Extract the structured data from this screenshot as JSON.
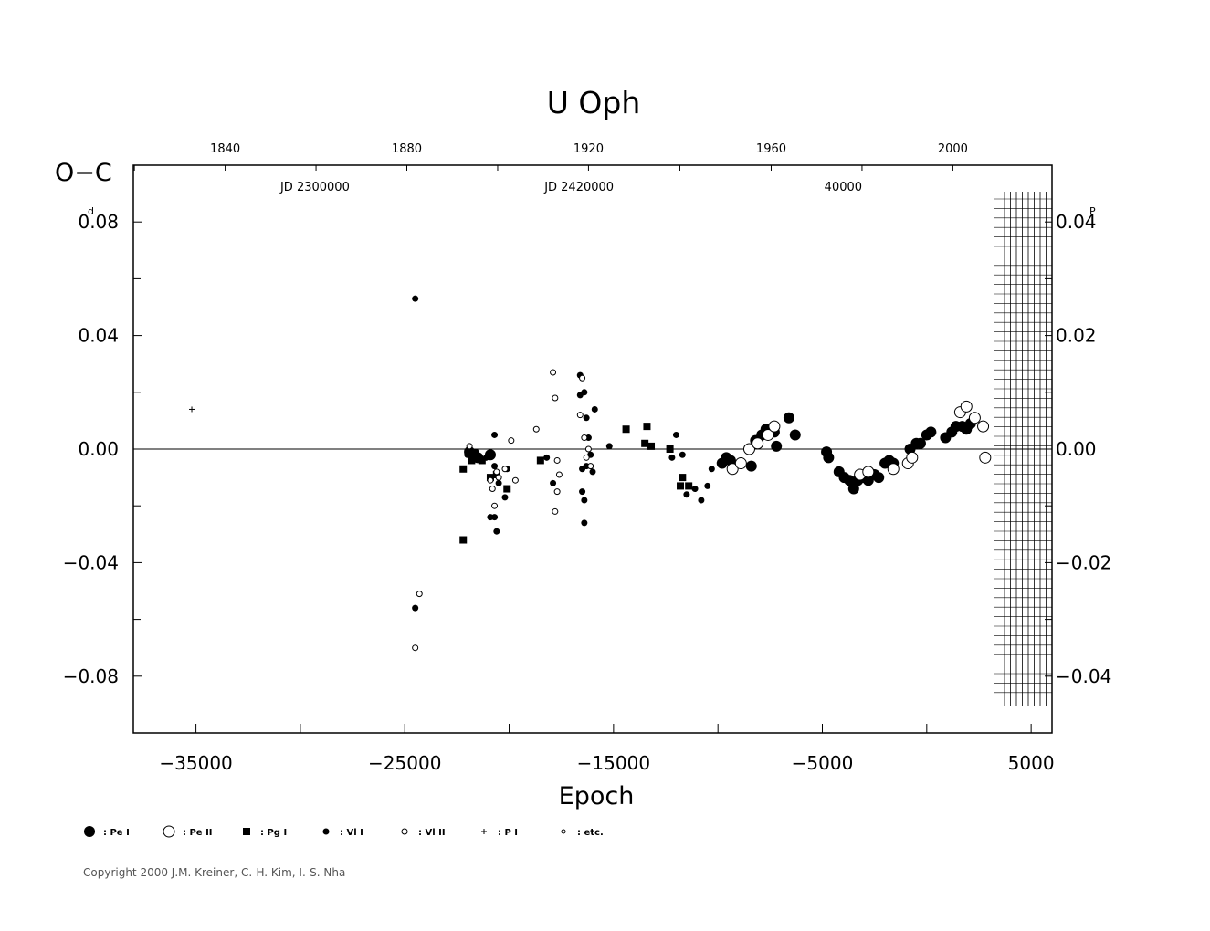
{
  "chart_data": {
    "type": "scatter",
    "title": "U Oph",
    "xlabel": "Epoch",
    "ylabel": "O−C",
    "ylabel_unit": "d",
    "right_unit": "P",
    "xlim": [
      -38000,
      6000
    ],
    "ylim": [
      -0.1,
      0.1
    ],
    "right_ylim": [
      -0.05,
      0.05
    ],
    "x_ticks": [
      {
        "value": -35000,
        "label": "−35000"
      },
      {
        "value": -25000,
        "label": "−25000"
      },
      {
        "value": -15000,
        "label": "−15000"
      },
      {
        "value": -5000,
        "label": "−5000"
      },
      {
        "value": 5000,
        "label": "5000"
      }
    ],
    "y_ticks": [
      {
        "value": 0.08,
        "label": "0.08"
      },
      {
        "value": 0.04,
        "label": "0.04"
      },
      {
        "value": 0.0,
        "label": "0.00"
      },
      {
        "value": -0.04,
        "label": "−0.04"
      },
      {
        "value": -0.08,
        "label": "−0.08"
      }
    ],
    "right_ticks": [
      {
        "value": 0.04,
        "label": "0.04"
      },
      {
        "value": 0.02,
        "label": "0.02"
      },
      {
        "value": 0.0,
        "label": "0.00"
      },
      {
        "value": -0.02,
        "label": "−0.02"
      },
      {
        "value": -0.04,
        "label": "−0.04"
      }
    ],
    "year_ticks": [
      {
        "x": -33600,
        "label": "1840"
      },
      {
        "x": -24900,
        "label": "1880"
      },
      {
        "x": -16200,
        "label": "1920"
      },
      {
        "x": -7450,
        "label": "1960"
      },
      {
        "x": 1250,
        "label": "2000"
      }
    ],
    "jd_labels": [
      {
        "x": -29300,
        "label": "JD 2300000"
      },
      {
        "x": -16650,
        "label": "JD 2420000"
      },
      {
        "x": -4000,
        "label": "40000"
      }
    ],
    "series": [
      {
        "name": "Pe I",
        "marker": "filled-large",
        "points": [
          [
            -21900,
            -0.001
          ],
          [
            -21500,
            -0.003
          ],
          [
            -20900,
            -0.002
          ],
          [
            -9800,
            -0.005
          ],
          [
            -9600,
            -0.003
          ],
          [
            -9400,
            -0.004
          ],
          [
            -8400,
            -0.006
          ],
          [
            -8200,
            0.003
          ],
          [
            -7900,
            0.005
          ],
          [
            -7700,
            0.007
          ],
          [
            -7300,
            0.006
          ],
          [
            -7200,
            0.001
          ],
          [
            -6600,
            0.011
          ],
          [
            -6300,
            0.005
          ],
          [
            -4800,
            -0.001
          ],
          [
            -4700,
            -0.003
          ],
          [
            -4200,
            -0.008
          ],
          [
            -3950,
            -0.01
          ],
          [
            -3700,
            -0.011
          ],
          [
            -3500,
            -0.014
          ],
          [
            -3300,
            -0.011
          ],
          [
            -3000,
            -0.01
          ],
          [
            -2800,
            -0.011
          ],
          [
            -2500,
            -0.009
          ],
          [
            -2300,
            -0.01
          ],
          [
            -2000,
            -0.005
          ],
          [
            -1800,
            -0.004
          ],
          [
            -1600,
            -0.005
          ],
          [
            -800,
            0.0
          ],
          [
            -500,
            0.002
          ],
          [
            -300,
            0.002
          ],
          [
            0,
            0.005
          ],
          [
            200,
            0.006
          ],
          [
            900,
            0.004
          ],
          [
            1200,
            0.006
          ],
          [
            1400,
            0.008
          ],
          [
            1700,
            0.008
          ],
          [
            1900,
            0.007
          ],
          [
            2100,
            0.009
          ]
        ]
      },
      {
        "name": "Pe II",
        "marker": "open-large",
        "points": [
          [
            -9300,
            -0.007
          ],
          [
            -8900,
            -0.005
          ],
          [
            -8500,
            0.0
          ],
          [
            -8100,
            0.002
          ],
          [
            -7600,
            0.005
          ],
          [
            -7300,
            0.008
          ],
          [
            -3200,
            -0.009
          ],
          [
            -2800,
            -0.008
          ],
          [
            -1600,
            -0.007
          ],
          [
            -900,
            -0.005
          ],
          [
            -700,
            -0.003
          ],
          [
            1600,
            0.013
          ],
          [
            1900,
            0.015
          ],
          [
            2300,
            0.011
          ],
          [
            2700,
            0.008
          ],
          [
            2800,
            -0.003
          ]
        ]
      },
      {
        "name": "Pg I",
        "marker": "square",
        "points": [
          [
            -22200,
            -0.007
          ],
          [
            -22200,
            -0.032
          ],
          [
            -21800,
            -0.004
          ],
          [
            -21300,
            -0.004
          ],
          [
            -20900,
            -0.01
          ],
          [
            -20600,
            -0.009
          ],
          [
            -20100,
            -0.014
          ],
          [
            -18500,
            -0.004
          ],
          [
            -14400,
            0.007
          ],
          [
            -13500,
            0.002
          ],
          [
            -13400,
            0.008
          ],
          [
            -13200,
            0.001
          ],
          [
            -12300,
            0.0
          ],
          [
            -11800,
            -0.013
          ],
          [
            -11700,
            -0.01
          ],
          [
            -11400,
            -0.013
          ]
        ]
      },
      {
        "name": "Vl I",
        "marker": "dot",
        "points": [
          [
            -24500,
            0.053
          ],
          [
            -24500,
            -0.056
          ],
          [
            -22000,
            -0.002
          ],
          [
            -21800,
            -0.003
          ],
          [
            -21600,
            -0.001
          ],
          [
            -21100,
            -0.003
          ],
          [
            -20900,
            -0.024
          ],
          [
            -20700,
            -0.024
          ],
          [
            -20700,
            -0.006
          ],
          [
            -20600,
            -0.029
          ],
          [
            -20700,
            0.005
          ],
          [
            -20500,
            -0.012
          ],
          [
            -20200,
            -0.017
          ],
          [
            -20100,
            -0.007
          ],
          [
            -18200,
            -0.003
          ],
          [
            -17900,
            -0.012
          ],
          [
            -16600,
            0.026
          ],
          [
            -16600,
            0.019
          ],
          [
            -16400,
            0.02
          ],
          [
            -16500,
            -0.015
          ],
          [
            -16400,
            -0.026
          ],
          [
            -16500,
            -0.007
          ],
          [
            -16300,
            0.011
          ],
          [
            -16200,
            0.004
          ],
          [
            -16300,
            -0.006
          ],
          [
            -16400,
            -0.018
          ],
          [
            -16100,
            -0.002
          ],
          [
            -16000,
            -0.008
          ],
          [
            -15900,
            0.014
          ],
          [
            -15200,
            0.001
          ],
          [
            -12200,
            -0.003
          ],
          [
            -12000,
            0.005
          ],
          [
            -11700,
            -0.002
          ],
          [
            -11500,
            -0.016
          ],
          [
            -11100,
            -0.014
          ],
          [
            -10800,
            -0.018
          ],
          [
            -10500,
            -0.013
          ],
          [
            -10300,
            -0.007
          ]
        ]
      },
      {
        "name": "Vl II",
        "marker": "ring",
        "points": [
          [
            -24500,
            -0.07
          ],
          [
            -24300,
            -0.051
          ],
          [
            -21900,
            0.001
          ],
          [
            -20900,
            -0.011
          ],
          [
            -20800,
            -0.014
          ],
          [
            -20700,
            -0.02
          ],
          [
            -20600,
            -0.008
          ],
          [
            -20500,
            -0.01
          ],
          [
            -20200,
            -0.007
          ],
          [
            -19900,
            0.003
          ],
          [
            -19700,
            -0.011
          ],
          [
            -18700,
            0.007
          ],
          [
            -17900,
            0.027
          ],
          [
            -17800,
            0.018
          ],
          [
            -17800,
            -0.022
          ],
          [
            -17700,
            -0.015
          ],
          [
            -17600,
            -0.009
          ],
          [
            -17700,
            -0.004
          ],
          [
            -16600,
            0.012
          ],
          [
            -16500,
            0.025
          ],
          [
            -16400,
            0.004
          ],
          [
            -16300,
            -0.003
          ],
          [
            -16200,
            0.0
          ],
          [
            -16100,
            -0.006
          ]
        ]
      },
      {
        "name": "P I",
        "marker": "plus",
        "points": [
          [
            -35200,
            0.014
          ]
        ]
      }
    ],
    "legend": [
      {
        "marker": "filled-large",
        "label": ": Pe I"
      },
      {
        "marker": "open-large",
        "label": ": Pe II"
      },
      {
        "marker": "square",
        "label": ": Pg I"
      },
      {
        "marker": "dot",
        "label": ": Vl I"
      },
      {
        "marker": "ring",
        "label": ": Vl II"
      },
      {
        "marker": "plus",
        "label": ": P I"
      },
      {
        "marker": "small-ring",
        "label": ": etc."
      }
    ],
    "legend_position": "bottom"
  },
  "copyright": "Copyright 2000 J.M. Kreiner, C.-H. Kim, I.-S. Nha"
}
